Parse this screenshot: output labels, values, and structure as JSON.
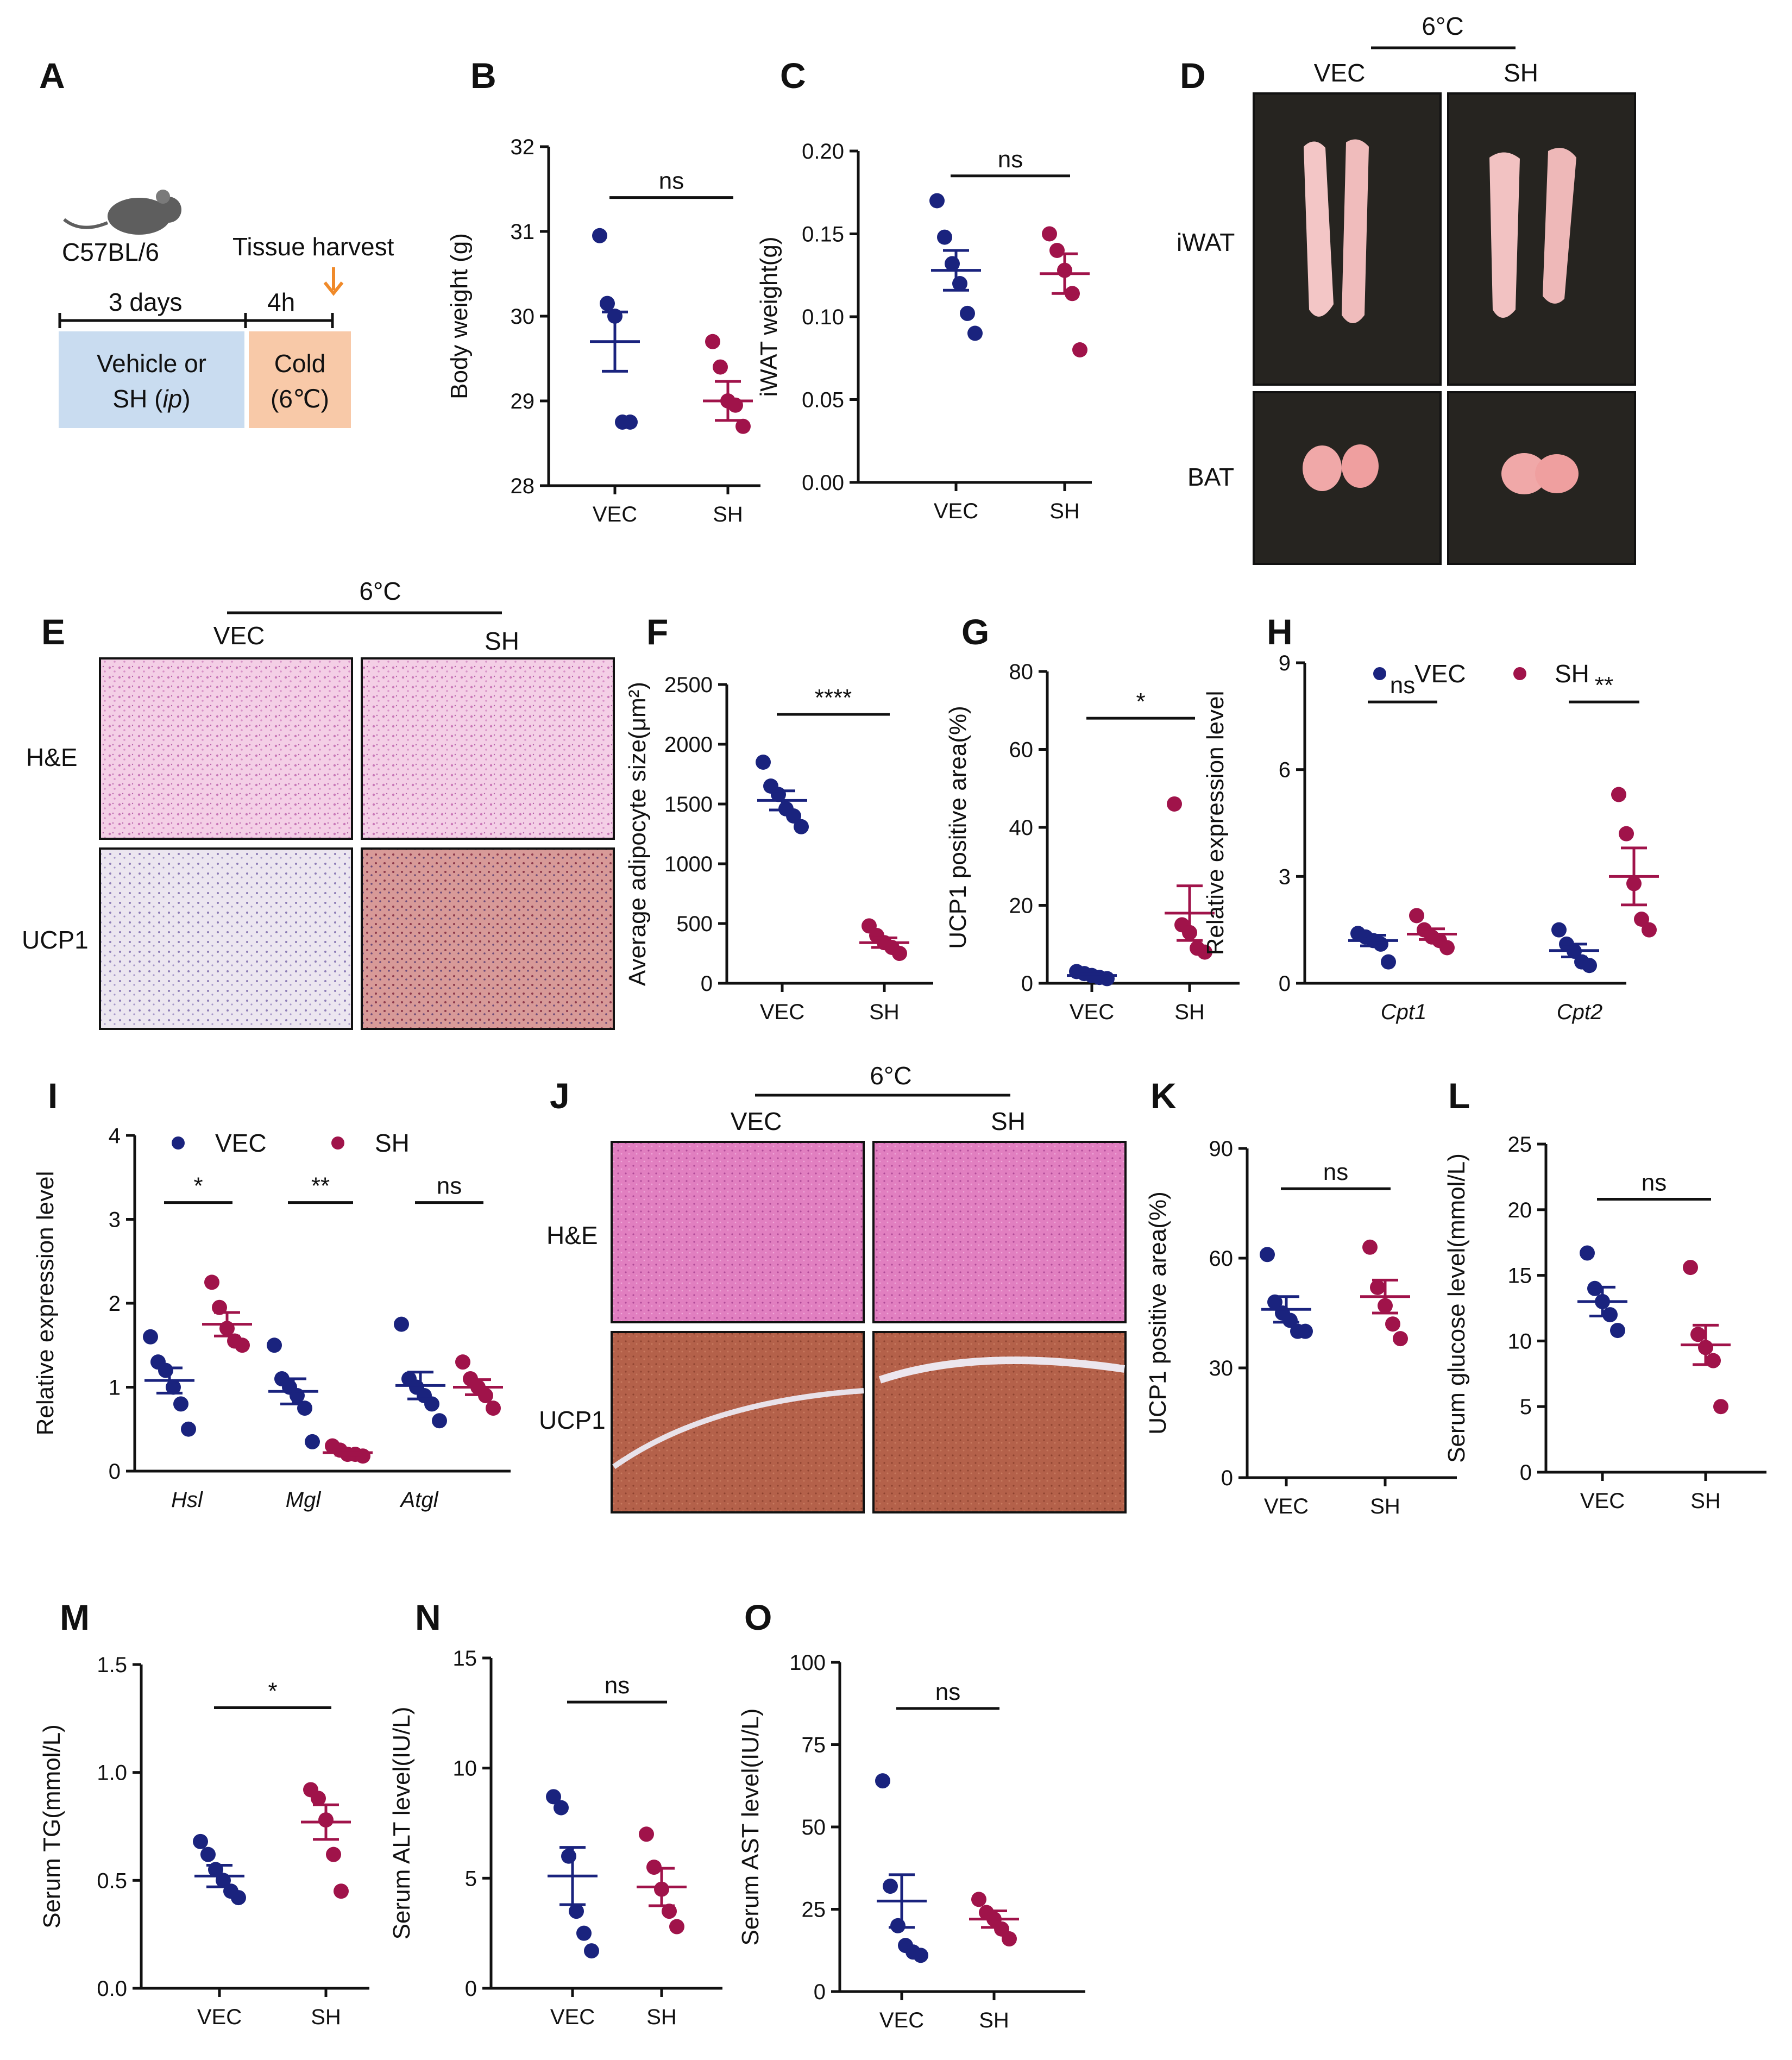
{
  "colors": {
    "vec": "#1a237e",
    "sh": "#a0134a",
    "axis": "#111111",
    "vec_legend_text": "#1a3fd6",
    "sh_legend_text": "#a0134a"
  },
  "panels": {
    "A": {
      "label": "A",
      "strain": "C57BL/6",
      "harvest": "Tissue harvest",
      "days": "3 days",
      "hours": "4h",
      "treat_line1": "Vehicle or",
      "treat_line2": "SH",
      "treat_ip": "ip",
      "cold_line1": "Cold",
      "cold_line2": "(6℃)",
      "treat_color": "#c9dcf0",
      "cold_color": "#f8c9a8"
    },
    "D": {
      "label": "D",
      "temp": "6°C",
      "col1": "VEC",
      "col2": "SH",
      "row1": "iWAT",
      "row2": "BAT"
    },
    "E": {
      "label": "E",
      "temp": "6°C",
      "col1": "VEC",
      "col2": "SH",
      "row1": "H&E",
      "row2": "UCP1"
    },
    "J": {
      "label": "J",
      "temp": "6°C",
      "col1": "VEC",
      "col2": "SH",
      "row1": "H&E",
      "row2": "UCP1"
    },
    "legend": {
      "vec": "VEC",
      "sh": "SH"
    }
  },
  "chart_data": [
    {
      "id": "B",
      "type": "scatter",
      "ylabel": "Body weight (g)",
      "ylim": [
        28,
        32
      ],
      "yticks": [
        "28",
        "29",
        "30",
        "31",
        "32"
      ],
      "ytick_values": [
        28,
        29,
        30,
        31,
        32
      ],
      "groups": [
        {
          "name": "VEC",
          "label": "VEC",
          "points": [
            30.95,
            30.15,
            30.0,
            28.75,
            28.75
          ],
          "mean": 29.7,
          "sem": 0.35,
          "color": "vec"
        },
        {
          "name": "SH",
          "label": "SH",
          "points": [
            29.7,
            29.4,
            29.0,
            28.95,
            28.7
          ],
          "mean": 29.0,
          "sem": 0.23,
          "color": "sh"
        }
      ],
      "sig": [
        {
          "text": "ns",
          "from": 0,
          "to": 1,
          "y": 31.4
        }
      ]
    },
    {
      "id": "C",
      "type": "scatter",
      "ylabel": "iWAT weight(g)",
      "ylim": [
        0,
        0.2
      ],
      "yticks": [
        "0.00",
        "0.05",
        "0.10",
        "0.15",
        "0.20"
      ],
      "ytick_values": [
        0,
        0.05,
        0.1,
        0.15,
        0.2
      ],
      "groups": [
        {
          "name": "VEC",
          "label": "VEC",
          "points": [
            0.17,
            0.148,
            0.132,
            0.12,
            0.102,
            0.09
          ],
          "mean": 0.128,
          "sem": 0.012,
          "color": "vec"
        },
        {
          "name": "SH",
          "label": "SH",
          "points": [
            0.15,
            0.14,
            0.128,
            0.114,
            0.08
          ],
          "mean": 0.126,
          "sem": 0.012,
          "color": "sh"
        }
      ],
      "sig": [
        {
          "text": "ns",
          "from": 0,
          "to": 1,
          "y": 0.185
        }
      ]
    },
    {
      "id": "F",
      "type": "scatter",
      "ylabel": "Average adipocyte size(μm²)",
      "ylim": [
        0,
        2500
      ],
      "yticks": [
        "0",
        "500",
        "1000",
        "1500",
        "2000",
        "2500"
      ],
      "ytick_values": [
        0,
        500,
        1000,
        1500,
        2000,
        2500
      ],
      "groups": [
        {
          "name": "VEC",
          "label": "VEC",
          "points": [
            1850,
            1650,
            1580,
            1460,
            1400,
            1310
          ],
          "mean": 1530,
          "sem": 80,
          "color": "vec"
        },
        {
          "name": "SH",
          "label": "SH",
          "points": [
            480,
            400,
            340,
            300,
            250
          ],
          "mean": 340,
          "sem": 40,
          "color": "sh"
        }
      ],
      "sig": [
        {
          "text": "****",
          "from": 0,
          "to": 1,
          "y": 2250
        }
      ]
    },
    {
      "id": "G",
      "type": "scatter",
      "ylabel": "UCP1 positive area(%)",
      "ylim": [
        0,
        80
      ],
      "yticks": [
        "0",
        "20",
        "40",
        "60",
        "80"
      ],
      "ytick_values": [
        0,
        20,
        40,
        60,
        80
      ],
      "groups": [
        {
          "name": "VEC",
          "label": "VEC",
          "points": [
            3.0,
            2.5,
            2.0,
            1.5,
            1.2
          ],
          "mean": 2.0,
          "sem": 0.4,
          "color": "vec"
        },
        {
          "name": "SH",
          "label": "SH",
          "points": [
            46,
            15,
            13,
            9,
            8
          ],
          "mean": 18,
          "sem": 7,
          "color": "sh"
        }
      ],
      "sig": [
        {
          "text": "*",
          "from": 0,
          "to": 1,
          "y": 68
        }
      ]
    },
    {
      "id": "H",
      "type": "scatter",
      "ylabel": "Relative expression level",
      "ylim": [
        0,
        9
      ],
      "yticks": [
        "0",
        "3",
        "6",
        "9"
      ],
      "ytick_values": [
        0,
        3,
        6,
        9
      ],
      "categories": [
        "Cpt1",
        "Cpt2"
      ],
      "groups": [
        {
          "name": "VEC",
          "cat": 0,
          "points": [
            1.4,
            1.3,
            1.2,
            1.1,
            0.6
          ],
          "mean": 1.2,
          "sem": 0.15,
          "color": "vec"
        },
        {
          "name": "SH",
          "cat": 0,
          "points": [
            1.9,
            1.5,
            1.3,
            1.2,
            1.0
          ],
          "mean": 1.38,
          "sem": 0.15,
          "color": "sh"
        },
        {
          "name": "VEC",
          "cat": 1,
          "points": [
            1.5,
            1.1,
            0.9,
            0.6,
            0.5
          ],
          "mean": 0.92,
          "sem": 0.18,
          "color": "vec"
        },
        {
          "name": "SH",
          "cat": 1,
          "points": [
            5.3,
            4.2,
            2.8,
            1.8,
            1.5
          ],
          "mean": 3.0,
          "sem": 0.8,
          "color": "sh"
        }
      ],
      "sig": [
        {
          "text": "ns",
          "from": 0,
          "to": 1,
          "y": 7.9
        },
        {
          "text": "**",
          "from": 2,
          "to": 3,
          "y": 7.9
        }
      ]
    },
    {
      "id": "I",
      "type": "scatter",
      "ylabel": "Relative expression level",
      "ylim": [
        0,
        4
      ],
      "yticks": [
        "0",
        "1",
        "2",
        "3",
        "4"
      ],
      "ytick_values": [
        0,
        1,
        2,
        3,
        4
      ],
      "categories": [
        "Hsl",
        "Mgl",
        "Atgl"
      ],
      "groups": [
        {
          "name": "VEC",
          "cat": 0,
          "points": [
            1.6,
            1.3,
            1.2,
            1.0,
            0.8,
            0.5
          ],
          "mean": 1.08,
          "sem": 0.15,
          "color": "vec"
        },
        {
          "name": "SH",
          "cat": 0,
          "points": [
            2.25,
            1.95,
            1.7,
            1.55,
            1.5
          ],
          "mean": 1.75,
          "sem": 0.14,
          "color": "sh"
        },
        {
          "name": "VEC",
          "cat": 1,
          "points": [
            1.5,
            1.1,
            1.0,
            0.9,
            0.75,
            0.35
          ],
          "mean": 0.95,
          "sem": 0.15,
          "color": "vec"
        },
        {
          "name": "SH",
          "cat": 1,
          "points": [
            0.3,
            0.25,
            0.2,
            0.2,
            0.18
          ],
          "mean": 0.22,
          "sem": 0.03,
          "color": "sh"
        },
        {
          "name": "VEC",
          "cat": 2,
          "points": [
            1.75,
            1.1,
            1.0,
            0.9,
            0.8,
            0.6
          ],
          "mean": 1.02,
          "sem": 0.16,
          "color": "vec"
        },
        {
          "name": "SH",
          "cat": 2,
          "points": [
            1.3,
            1.1,
            1.0,
            0.9,
            0.75
          ],
          "mean": 1.0,
          "sem": 0.09,
          "color": "sh"
        }
      ],
      "sig": [
        {
          "text": "*",
          "from": 0,
          "to": 1,
          "y": 3.2
        },
        {
          "text": "**",
          "from": 2,
          "to": 3,
          "y": 3.2
        },
        {
          "text": "ns",
          "from": 4,
          "to": 5,
          "y": 3.2
        }
      ]
    },
    {
      "id": "K",
      "type": "scatter",
      "ylabel": "UCP1 positive area(%)",
      "ylim": [
        0,
        90
      ],
      "yticks": [
        "0",
        "30",
        "60",
        "90"
      ],
      "ytick_values": [
        0,
        30,
        60,
        90
      ],
      "groups": [
        {
          "name": "VEC",
          "label": "VEC",
          "points": [
            61,
            48,
            45,
            43,
            40,
            40
          ],
          "mean": 46,
          "sem": 3.5,
          "color": "vec"
        },
        {
          "name": "SH",
          "label": "SH",
          "points": [
            63,
            52,
            47,
            42,
            38
          ],
          "mean": 49.5,
          "sem": 4.5,
          "color": "sh"
        }
      ],
      "sig": [
        {
          "text": "ns",
          "from": 0,
          "to": 1,
          "y": 79
        }
      ]
    },
    {
      "id": "L",
      "type": "scatter",
      "ylabel": "Serum glucose level(mmol/L)",
      "ylim": [
        0,
        25
      ],
      "yticks": [
        "0",
        "5",
        "10",
        "15",
        "20",
        "25"
      ],
      "ytick_values": [
        0,
        5,
        10,
        15,
        20,
        25
      ],
      "groups": [
        {
          "name": "VEC",
          "label": "VEC",
          "points": [
            16.7,
            14.0,
            13.0,
            12.0,
            10.8
          ],
          "mean": 13.0,
          "sem": 1.1,
          "color": "vec"
        },
        {
          "name": "SH",
          "label": "SH",
          "points": [
            15.6,
            10.5,
            9.5,
            8.5,
            5.0
          ],
          "mean": 9.7,
          "sem": 1.5,
          "color": "sh"
        }
      ],
      "sig": [
        {
          "text": "ns",
          "from": 0,
          "to": 1,
          "y": 20.8
        }
      ]
    },
    {
      "id": "M",
      "type": "scatter",
      "ylabel": "Serum TG(mmol/L)",
      "ylim": [
        0,
        1.5
      ],
      "yticks": [
        "0.0",
        "0.5",
        "1.0",
        "1.5"
      ],
      "ytick_values": [
        0,
        0.5,
        1.0,
        1.5
      ],
      "groups": [
        {
          "name": "VEC",
          "label": "VEC",
          "points": [
            0.68,
            0.62,
            0.55,
            0.5,
            0.45,
            0.42
          ],
          "mean": 0.52,
          "sem": 0.05,
          "color": "vec"
        },
        {
          "name": "SH",
          "label": "SH",
          "points": [
            0.92,
            0.88,
            0.78,
            0.62,
            0.45
          ],
          "mean": 0.77,
          "sem": 0.08,
          "color": "sh"
        }
      ],
      "sig": [
        {
          "text": "*",
          "from": 0,
          "to": 1,
          "y": 1.3
        }
      ]
    },
    {
      "id": "N",
      "type": "scatter",
      "ylabel": "Serum ALT level(IU/L)",
      "ylim": [
        0,
        15
      ],
      "yticks": [
        "0",
        "5",
        "10",
        "15"
      ],
      "ytick_values": [
        0,
        5,
        10,
        15
      ],
      "groups": [
        {
          "name": "VEC",
          "label": "VEC",
          "points": [
            8.7,
            8.2,
            6.0,
            3.5,
            2.5,
            1.7
          ],
          "mean": 5.1,
          "sem": 1.3,
          "color": "vec"
        },
        {
          "name": "SH",
          "label": "SH",
          "points": [
            7.0,
            5.5,
            4.5,
            3.5,
            2.8
          ],
          "mean": 4.6,
          "sem": 0.85,
          "color": "sh"
        }
      ],
      "sig": [
        {
          "text": "ns",
          "from": 0,
          "to": 1,
          "y": 13.0
        }
      ]
    },
    {
      "id": "O",
      "type": "scatter",
      "ylabel": "Serum AST level(IU/L)",
      "ylim": [
        0,
        100
      ],
      "yticks": [
        "0",
        "25",
        "50",
        "75",
        "100"
      ],
      "ytick_values": [
        0,
        25,
        50,
        75,
        100
      ],
      "groups": [
        {
          "name": "VEC",
          "label": "VEC",
          "points": [
            64,
            32,
            20,
            14,
            12,
            11
          ],
          "mean": 27.5,
          "sem": 8,
          "color": "vec"
        },
        {
          "name": "SH",
          "label": "SH",
          "points": [
            28,
            24,
            22,
            19,
            16
          ],
          "mean": 22,
          "sem": 2.5,
          "color": "sh"
        }
      ],
      "sig": [
        {
          "text": "ns",
          "from": 0,
          "to": 1,
          "y": 86
        }
      ]
    }
  ]
}
